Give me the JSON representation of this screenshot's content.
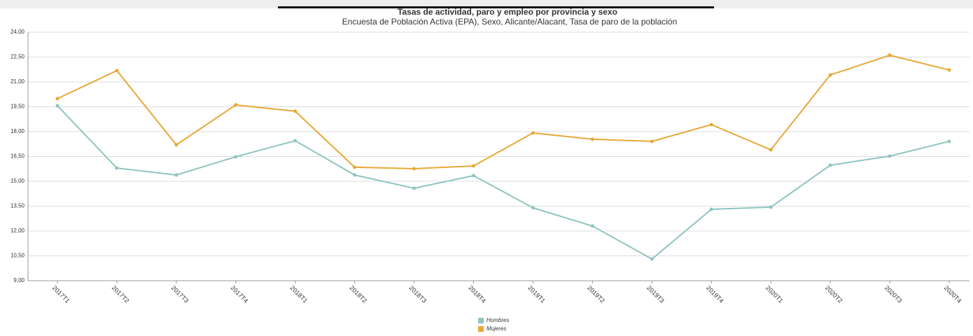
{
  "chart_data": {
    "type": "line",
    "title": "Tasas de actividad, paro y empleo por provincia y sexo",
    "subtitle": "Encuesta de Población Activa (EPA), Sexo, Alicante/Alacant, Tasa de paro de la población",
    "categories": [
      "2017T1",
      "2017T2",
      "2017T3",
      "2017T4",
      "2018T1",
      "2018T2",
      "2018T3",
      "2018T4",
      "2019T1",
      "2019T2",
      "2019T3",
      "2019T4",
      "2020T1",
      "2020T2",
      "2020T3",
      "2020T4"
    ],
    "series": [
      {
        "name": "Hombres",
        "color": "#8ec5c0",
        "values": [
          19.56,
          15.8,
          15.38,
          16.48,
          17.45,
          15.38,
          14.58,
          15.34,
          13.4,
          12.3,
          10.31,
          13.31,
          13.44,
          15.97,
          16.52,
          17.41
        ]
      },
      {
        "name": "Mujeres",
        "color": "#e8a838",
        "values": [
          19.99,
          21.68,
          17.2,
          19.61,
          19.23,
          15.85,
          15.76,
          15.93,
          17.92,
          17.54,
          17.41,
          18.42,
          16.9,
          21.42,
          22.61,
          21.72
        ]
      }
    ],
    "ylim": [
      9,
      24
    ],
    "yticks": [
      {
        "value": 9,
        "label": "9,00"
      },
      {
        "value": 10.5,
        "label": "10,50"
      },
      {
        "value": 12,
        "label": "12,00"
      },
      {
        "value": 13.5,
        "label": "13,50"
      },
      {
        "value": 15,
        "label": "15,00"
      },
      {
        "value": 16.5,
        "label": "16,50"
      },
      {
        "value": 18,
        "label": "18,00"
      },
      {
        "value": 19.5,
        "label": "19,50"
      },
      {
        "value": 21,
        "label": "21,00"
      },
      {
        "value": 22.5,
        "label": "22,50"
      },
      {
        "value": 24,
        "label": "24,00"
      }
    ],
    "grid": true
  }
}
